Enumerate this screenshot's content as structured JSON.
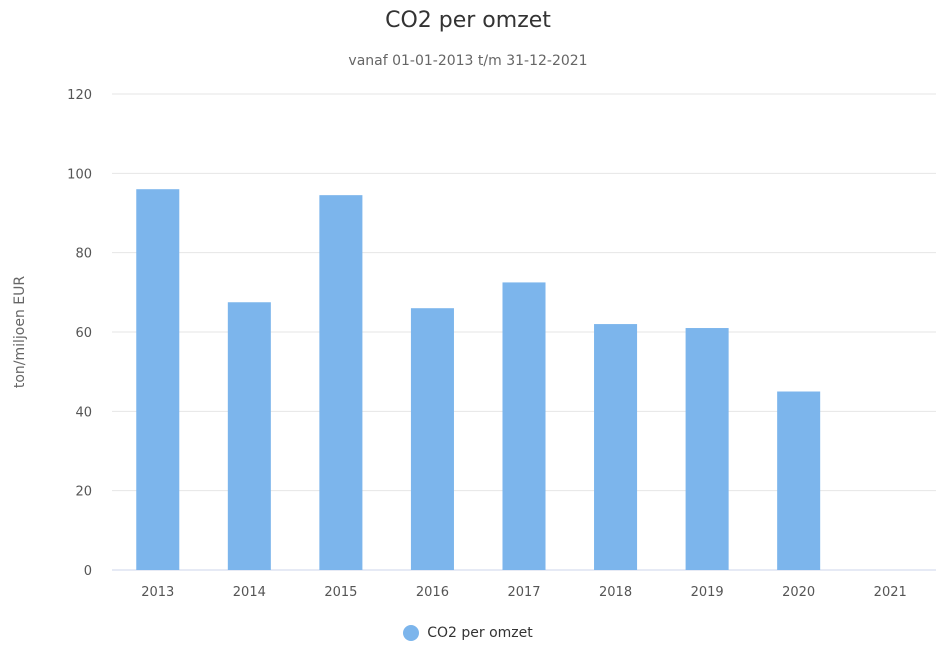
{
  "chart_data": {
    "type": "bar",
    "title": "CO2 per omzet",
    "subtitle": "vanaf 01-01-2013 t/m 31-12-2021",
    "xlabel": "",
    "ylabel": "ton/miljoen EUR",
    "categories": [
      "2013",
      "2014",
      "2015",
      "2016",
      "2017",
      "2018",
      "2019",
      "2020",
      "2021"
    ],
    "series": [
      {
        "name": "CO2 per omzet",
        "values": [
          96,
          67.5,
          94.5,
          66,
          72.5,
          62,
          61,
          45,
          null
        ]
      }
    ],
    "ylim": [
      0,
      120
    ],
    "yticks": [
      0,
      20,
      40,
      60,
      80,
      100,
      120
    ],
    "grid": true,
    "legend_position": "bottom",
    "colors": {
      "bar": "#7cb5ec",
      "grid": "#e6e6e6",
      "axis": "#ccd6eb"
    }
  }
}
